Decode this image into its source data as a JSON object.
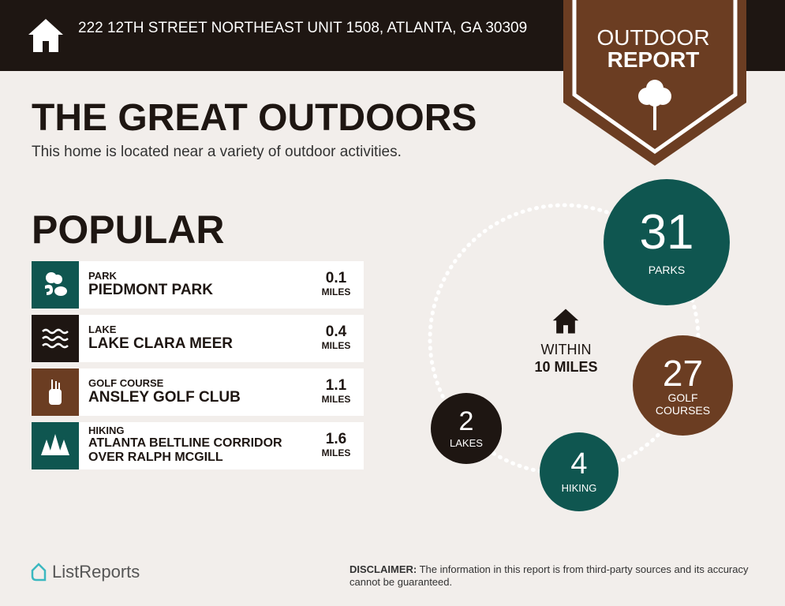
{
  "header": {
    "address": "222 12TH STREET NORTHEAST UNIT 1508, ATLANTA, GA 30309",
    "badge_line1": "OUTDOOR",
    "badge_line2": "REPORT"
  },
  "title": "THE GREAT OUTDOORS",
  "subtitle": "This home is located near a variety of outdoor activities.",
  "popular": {
    "heading": "POPULAR",
    "items": [
      {
        "category": "PARK",
        "name": "PIEDMONT PARK",
        "distance": "0.1",
        "unit": "MILES",
        "icon": "park-icon",
        "color": "#0f5650"
      },
      {
        "category": "LAKE",
        "name": "LAKE CLARA MEER",
        "distance": "0.4",
        "unit": "MILES",
        "icon": "waves-icon",
        "color": "#1e1612"
      },
      {
        "category": "GOLF COURSE",
        "name": "ANSLEY GOLF CLUB",
        "distance": "1.1",
        "unit": "MILES",
        "icon": "golf-bag-icon",
        "color": "#6b3d22"
      },
      {
        "category": "HIKING",
        "name": "ATLANTA BELTLINE CORRIDOR OVER RALPH MCGILL",
        "distance": "1.6",
        "unit": "MILES",
        "icon": "trees-icon",
        "color": "#0f5650"
      }
    ]
  },
  "summary": {
    "within_line1": "WITHIN",
    "within_line2": "10 MILES",
    "parks": {
      "count": "31",
      "label": "PARKS"
    },
    "golf": {
      "count": "27",
      "label1": "GOLF",
      "label2": "COURSES"
    },
    "hiking": {
      "count": "4",
      "label": "HIKING"
    },
    "lakes": {
      "count": "2",
      "label": "LAKES"
    }
  },
  "footer": {
    "logo": "ListReports",
    "disclaimer_label": "DISCLAIMER:",
    "disclaimer": " The information in this report is from third-party sources and its accuracy cannot be guaranteed."
  },
  "colors": {
    "dark": "#1e1612",
    "teal": "#0f5650",
    "brown": "#6b3d22",
    "background": "#f2eeeb"
  }
}
